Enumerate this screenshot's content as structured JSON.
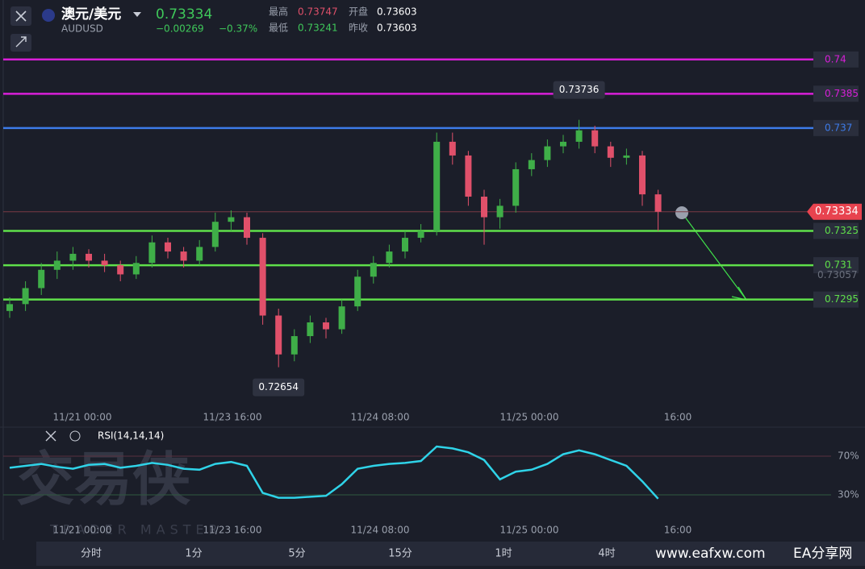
{
  "header": {
    "pair": "澳元/美元",
    "symbol": "AUDUSD",
    "price": "0.73334",
    "change": "−0.00269",
    "change_pct": "−0.37%",
    "high_label": "最高",
    "high": "0.73747",
    "open_label": "开盘",
    "open": "0.73603",
    "low_label": "最低",
    "low": "0.73241",
    "prev_label": "昨收",
    "prev": "0.73603"
  },
  "price_chart": {
    "ylim": [
      0.7248,
      0.7426
    ],
    "levels": [
      {
        "value": 0.74,
        "color": "#d81fd8"
      },
      {
        "value": 0.7385,
        "color": "#d81fd8"
      },
      {
        "value": 0.737,
        "color": "#3d7be8"
      },
      {
        "value": 0.7325,
        "color": "#5fe04a"
      },
      {
        "value": 0.731,
        "color": "#5fe04a"
      },
      {
        "value": 0.7295,
        "color": "#5fe04a"
      }
    ],
    "current_price": 0.73334,
    "side_price": 0.73057,
    "high_marker": 0.73736,
    "low_marker": 0.72654,
    "up_color": "#3fae48",
    "down_color": "#e0506a",
    "candles": [
      [
        0.729,
        0.7296,
        0.7287,
        0.7293
      ],
      [
        0.7293,
        0.7303,
        0.729,
        0.73
      ],
      [
        0.73,
        0.7311,
        0.7297,
        0.7308
      ],
      [
        0.7308,
        0.7316,
        0.7304,
        0.7312
      ],
      [
        0.7312,
        0.7318,
        0.7308,
        0.7315
      ],
      [
        0.7315,
        0.7317,
        0.7309,
        0.7312
      ],
      [
        0.7312,
        0.7315,
        0.7307,
        0.731
      ],
      [
        0.731,
        0.7312,
        0.7303,
        0.7306
      ],
      [
        0.7306,
        0.7314,
        0.7304,
        0.7311
      ],
      [
        0.7311,
        0.7323,
        0.7309,
        0.732
      ],
      [
        0.732,
        0.7322,
        0.7313,
        0.7316
      ],
      [
        0.7316,
        0.7318,
        0.7309,
        0.7312
      ],
      [
        0.7312,
        0.7321,
        0.731,
        0.7318
      ],
      [
        0.7318,
        0.7333,
        0.7316,
        0.7329
      ],
      [
        0.7329,
        0.7334,
        0.7325,
        0.7331
      ],
      [
        0.7331,
        0.7333,
        0.7319,
        0.7322
      ],
      [
        0.7322,
        0.7324,
        0.7284,
        0.7288
      ],
      [
        0.7288,
        0.7291,
        0.72654,
        0.7271
      ],
      [
        0.7271,
        0.7282,
        0.7268,
        0.7279
      ],
      [
        0.7279,
        0.7288,
        0.7276,
        0.7285
      ],
      [
        0.7285,
        0.7287,
        0.7278,
        0.7282
      ],
      [
        0.7282,
        0.7295,
        0.728,
        0.7292
      ],
      [
        0.7292,
        0.7308,
        0.729,
        0.7305
      ],
      [
        0.7305,
        0.7314,
        0.7302,
        0.7311
      ],
      [
        0.7311,
        0.7319,
        0.7309,
        0.7316
      ],
      [
        0.7316,
        0.7325,
        0.7313,
        0.7322
      ],
      [
        0.7322,
        0.7328,
        0.732,
        0.7325
      ],
      [
        0.7325,
        0.7368,
        0.7323,
        0.7364
      ],
      [
        0.7364,
        0.7368,
        0.7354,
        0.7358
      ],
      [
        0.7358,
        0.736,
        0.7336,
        0.734
      ],
      [
        0.734,
        0.7343,
        0.7319,
        0.7331
      ],
      [
        0.7331,
        0.7339,
        0.7326,
        0.7336
      ],
      [
        0.7336,
        0.7355,
        0.7333,
        0.7352
      ],
      [
        0.7352,
        0.7359,
        0.7349,
        0.7356
      ],
      [
        0.7356,
        0.7365,
        0.7353,
        0.7362
      ],
      [
        0.7362,
        0.7367,
        0.7359,
        0.7364
      ],
      [
        0.7364,
        0.73736,
        0.7361,
        0.7369
      ],
      [
        0.7369,
        0.7371,
        0.7359,
        0.7362
      ],
      [
        0.7362,
        0.7364,
        0.7353,
        0.7357
      ],
      [
        0.7357,
        0.7361,
        0.7354,
        0.7358
      ],
      [
        0.7358,
        0.736,
        0.7336,
        0.7341
      ],
      [
        0.7341,
        0.7343,
        0.7325,
        0.73334
      ]
    ],
    "time_labels": [
      "11/21 00:00",
      "11/23 16:00",
      "11/24 08:00",
      "11/25 00:00",
      "16:00"
    ]
  },
  "rsi": {
    "title": "RSI(14,14,14)",
    "color": "#2fd3e8",
    "ylim": [
      0,
      100
    ],
    "yticks": [
      {
        "value": 70,
        "label": "70%"
      },
      {
        "value": 30,
        "label": "30%"
      }
    ],
    "values": [
      58,
      60,
      62,
      59,
      57,
      61,
      62,
      58,
      60,
      63,
      61,
      57,
      56,
      62,
      64,
      60,
      32,
      27,
      27,
      28,
      29,
      41,
      57,
      60,
      62,
      63,
      65,
      80,
      78,
      74,
      66,
      46,
      54,
      56,
      62,
      72,
      76,
      72,
      66,
      60,
      44,
      26
    ]
  },
  "watermark": {
    "title": "交易侠",
    "subtitle": "TRADER MASTER",
    "site": "www.eafxw.com",
    "site_name": "EA分享网"
  },
  "tabs": [
    "分时",
    "1分",
    "5分",
    "15分",
    "1时",
    "4时"
  ]
}
